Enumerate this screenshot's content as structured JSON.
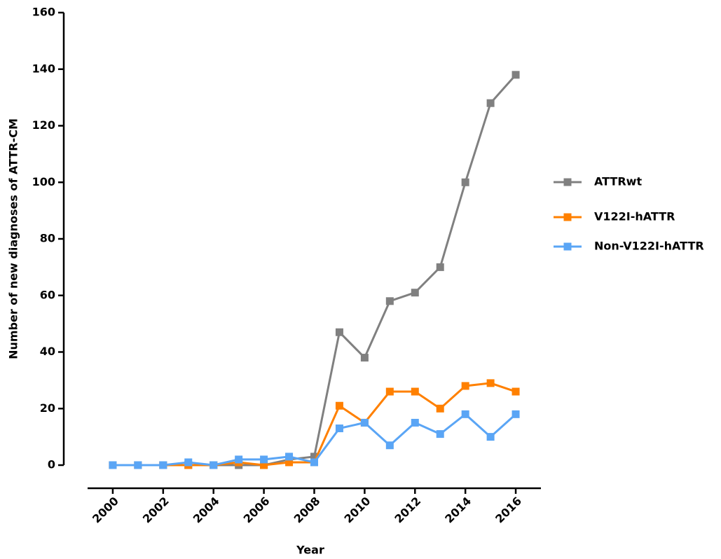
{
  "chart_data": {
    "type": "line",
    "x_label": "Year",
    "y_label": "Number of new diagnoses of ATTR-CM",
    "x": [
      2000,
      2001,
      2002,
      2003,
      2004,
      2005,
      2006,
      2007,
      2008,
      2009,
      2010,
      2011,
      2012,
      2013,
      2014,
      2015,
      2016
    ],
    "series": [
      {
        "name": "ATTRwt",
        "color": "#808080",
        "values": [
          0,
          0,
          0,
          0,
          0,
          0,
          0,
          2,
          3,
          47,
          38,
          58,
          61,
          70,
          100,
          128,
          138
        ]
      },
      {
        "name": "V122I-hATTR",
        "color": "#ff8000",
        "values": [
          0,
          0,
          0,
          0,
          0,
          1,
          0,
          1,
          1,
          21,
          15,
          26,
          26,
          20,
          28,
          29,
          26
        ]
      },
      {
        "name": "Non-V122I-hATTR",
        "color": "#5aa5f5",
        "values": [
          0,
          0,
          0,
          1,
          0,
          2,
          2,
          3,
          1,
          13,
          15,
          7,
          15,
          11,
          18,
          10,
          18
        ]
      }
    ],
    "xlim": [
      1999,
      2017
    ],
    "xticks": [
      2000,
      2002,
      2004,
      2006,
      2008,
      2010,
      2012,
      2014,
      2016
    ],
    "ylim": [
      0,
      160
    ],
    "yticks": [
      0,
      20,
      40,
      60,
      80,
      100,
      120,
      140,
      160
    ],
    "legend": "right"
  }
}
